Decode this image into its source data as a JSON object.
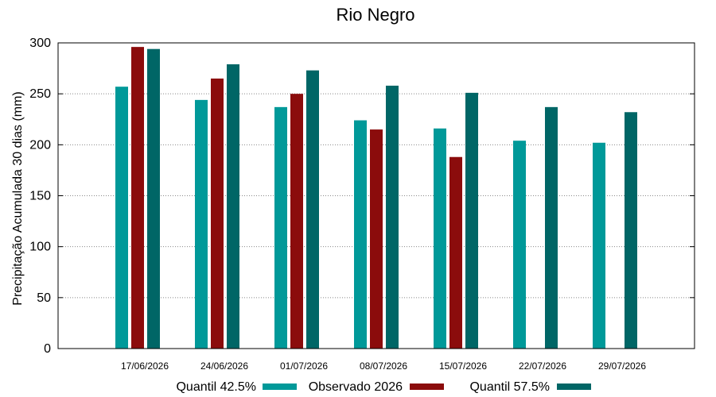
{
  "chart_data": {
    "type": "bar",
    "title": "Rio Negro",
    "ylabel": "Precipitação Acumulada 30 dias (mm)",
    "xlabel": "",
    "ylim": [
      0,
      300
    ],
    "yticks": [
      "0",
      "50",
      "100",
      "150",
      "200",
      "250",
      "300"
    ],
    "grid": true,
    "legend_position": "bottom",
    "categories": [
      "17/06/2026",
      "24/06/2026",
      "01/07/2026",
      "08/07/2026",
      "15/07/2026",
      "22/07/2026",
      "29/07/2026"
    ],
    "series": [
      {
        "name": "Quantil 42.5%",
        "color": "#009999",
        "values": [
          257,
          244,
          237,
          224,
          216,
          204,
          202
        ]
      },
      {
        "name": "Observado 2026",
        "color": "#8b0c0c",
        "values": [
          296,
          265,
          250,
          215,
          188,
          null,
          null
        ]
      },
      {
        "name": "Quantil 57.5%",
        "color": "#006666",
        "values": [
          294,
          279,
          273,
          258,
          251,
          237,
          232
        ]
      }
    ]
  }
}
